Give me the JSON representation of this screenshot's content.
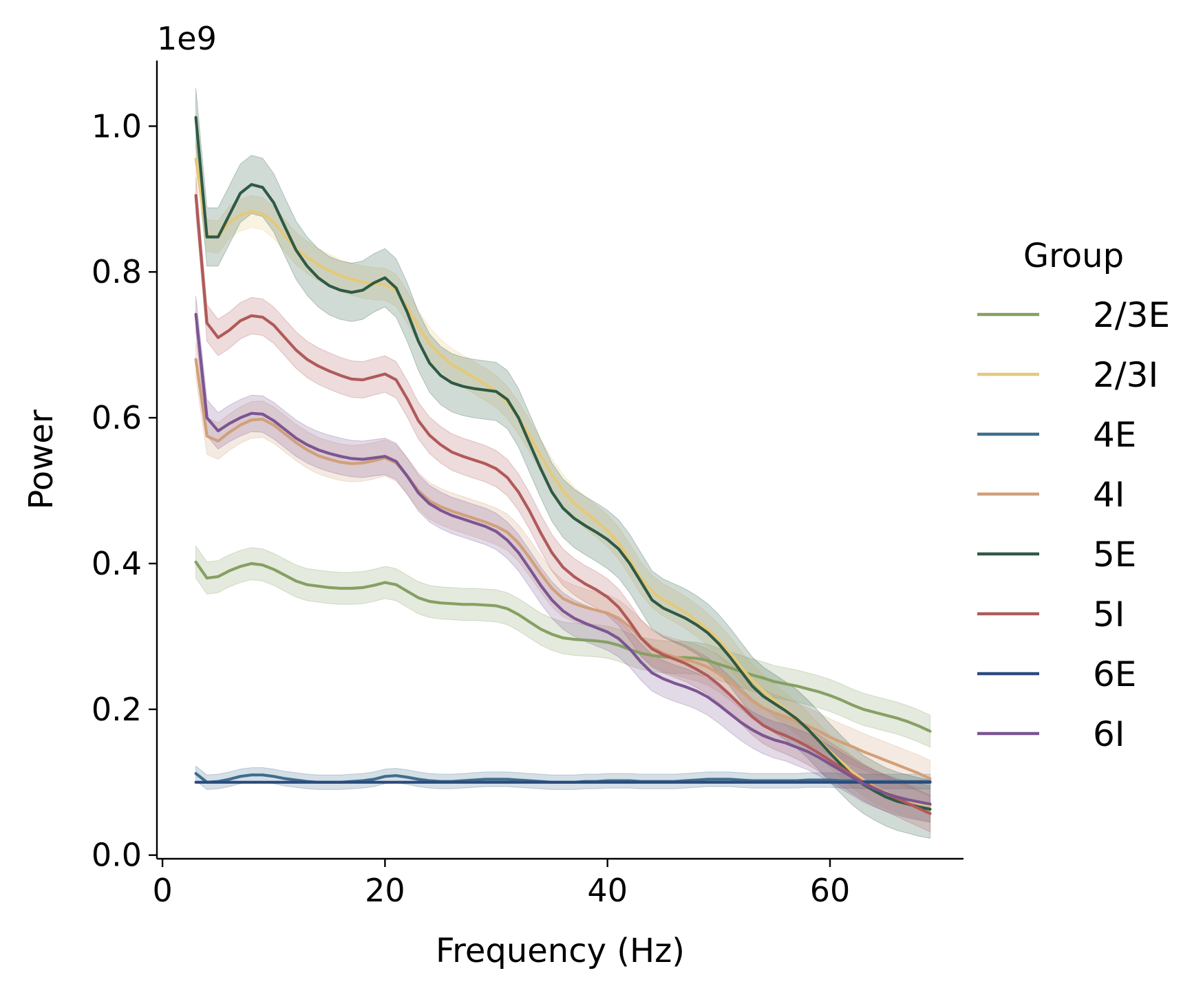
{
  "chart_data": {
    "type": "line",
    "xlabel": "Frequency (Hz)",
    "ylabel": "Power",
    "y_offset_label": "1e9",
    "xlim": [
      -0.5,
      72
    ],
    "ylim": [
      -0.005,
      1.09
    ],
    "xticks": [
      0,
      20,
      40,
      60
    ],
    "xtick_labels": [
      "0",
      "20",
      "40",
      "60"
    ],
    "yticks": [
      0.0,
      0.2,
      0.4,
      0.6,
      0.8,
      1.0
    ],
    "ytick_labels": [
      "0.0",
      "0.2",
      "0.4",
      "0.6",
      "0.8",
      "1.0"
    ],
    "grid": false,
    "legend": {
      "title": "Group",
      "placement": "right-outside"
    },
    "x": [
      3,
      4,
      5,
      6,
      7,
      8,
      9,
      10,
      11,
      12,
      13,
      14,
      15,
      16,
      17,
      18,
      19,
      20,
      21,
      22,
      23,
      24,
      25,
      26,
      27,
      28,
      29,
      30,
      31,
      32,
      33,
      34,
      35,
      36,
      37,
      38,
      39,
      40,
      41,
      42,
      43,
      44,
      45,
      46,
      47,
      48,
      49,
      50,
      51,
      52,
      53,
      54,
      55,
      56,
      57,
      58,
      59,
      60,
      61,
      62,
      63,
      64,
      65,
      66,
      67,
      68,
      69
    ],
    "series": [
      {
        "name": "2/3E",
        "color": "#86a063",
        "band": 0.022,
        "values": [
          0.402,
          0.38,
          0.382,
          0.39,
          0.396,
          0.4,
          0.398,
          0.392,
          0.384,
          0.376,
          0.371,
          0.369,
          0.367,
          0.366,
          0.366,
          0.367,
          0.37,
          0.374,
          0.371,
          0.362,
          0.353,
          0.348,
          0.346,
          0.345,
          0.344,
          0.344,
          0.343,
          0.342,
          0.338,
          0.33,
          0.32,
          0.31,
          0.303,
          0.298,
          0.296,
          0.295,
          0.294,
          0.292,
          0.288,
          0.282,
          0.277,
          0.274,
          0.272,
          0.271,
          0.271,
          0.27,
          0.267,
          0.262,
          0.257,
          0.252,
          0.247,
          0.243,
          0.238,
          0.235,
          0.232,
          0.228,
          0.224,
          0.219,
          0.213,
          0.206,
          0.2,
          0.196,
          0.192,
          0.188,
          0.183,
          0.177,
          0.17
        ]
      },
      {
        "name": "2/3I",
        "color": "#e5c97a",
        "band": 0.022,
        "values": [
          0.955,
          0.85,
          0.848,
          0.868,
          0.878,
          0.883,
          0.88,
          0.868,
          0.85,
          0.832,
          0.82,
          0.81,
          0.802,
          0.795,
          0.79,
          0.786,
          0.784,
          0.783,
          0.775,
          0.752,
          0.725,
          0.702,
          0.686,
          0.673,
          0.664,
          0.655,
          0.646,
          0.636,
          0.621,
          0.6,
          0.575,
          0.548,
          0.522,
          0.5,
          0.483,
          0.47,
          0.458,
          0.445,
          0.428,
          0.405,
          0.38,
          0.362,
          0.35,
          0.342,
          0.333,
          0.322,
          0.31,
          0.295,
          0.278,
          0.258,
          0.24,
          0.225,
          0.212,
          0.2,
          0.188,
          0.174,
          0.158,
          0.142,
          0.128,
          0.114,
          0.103,
          0.093,
          0.086,
          0.08,
          0.075,
          0.071,
          0.068
        ]
      },
      {
        "name": "4E",
        "color": "#3f6e8d",
        "band": 0.01,
        "values": [
          0.112,
          0.1,
          0.101,
          0.104,
          0.108,
          0.11,
          0.11,
          0.108,
          0.105,
          0.103,
          0.101,
          0.1,
          0.1,
          0.1,
          0.101,
          0.102,
          0.104,
          0.108,
          0.109,
          0.107,
          0.104,
          0.102,
          0.101,
          0.101,
          0.102,
          0.103,
          0.104,
          0.104,
          0.104,
          0.103,
          0.102,
          0.101,
          0.1,
          0.1,
          0.1,
          0.101,
          0.101,
          0.102,
          0.102,
          0.102,
          0.101,
          0.101,
          0.101,
          0.101,
          0.102,
          0.103,
          0.104,
          0.104,
          0.104,
          0.103,
          0.102,
          0.102,
          0.102,
          0.102,
          0.102,
          0.103,
          0.103,
          0.103,
          0.102,
          0.102,
          0.101,
          0.101,
          0.101,
          0.101,
          0.101,
          0.101,
          0.101
        ]
      },
      {
        "name": "4I",
        "color": "#d1a07a",
        "band": 0.025,
        "values": [
          0.68,
          0.575,
          0.568,
          0.58,
          0.59,
          0.597,
          0.598,
          0.59,
          0.578,
          0.566,
          0.556,
          0.548,
          0.543,
          0.539,
          0.537,
          0.538,
          0.541,
          0.545,
          0.538,
          0.52,
          0.5,
          0.486,
          0.478,
          0.472,
          0.467,
          0.462,
          0.457,
          0.451,
          0.443,
          0.428,
          0.408,
          0.386,
          0.366,
          0.352,
          0.345,
          0.34,
          0.336,
          0.332,
          0.325,
          0.313,
          0.298,
          0.285,
          0.277,
          0.272,
          0.268,
          0.264,
          0.258,
          0.249,
          0.238,
          0.225,
          0.212,
          0.202,
          0.195,
          0.19,
          0.184,
          0.177,
          0.17,
          0.162,
          0.155,
          0.149,
          0.142,
          0.136,
          0.13,
          0.124,
          0.118,
          0.112,
          0.105
        ]
      },
      {
        "name": "5E",
        "color": "#2f5a44",
        "band": 0.04,
        "values": [
          1.012,
          0.848,
          0.848,
          0.878,
          0.908,
          0.92,
          0.916,
          0.895,
          0.862,
          0.83,
          0.808,
          0.792,
          0.781,
          0.775,
          0.772,
          0.775,
          0.785,
          0.792,
          0.778,
          0.745,
          0.705,
          0.675,
          0.658,
          0.648,
          0.643,
          0.64,
          0.638,
          0.636,
          0.625,
          0.6,
          0.565,
          0.53,
          0.498,
          0.476,
          0.462,
          0.452,
          0.443,
          0.433,
          0.42,
          0.4,
          0.375,
          0.35,
          0.339,
          0.332,
          0.325,
          0.316,
          0.305,
          0.29,
          0.272,
          0.252,
          0.232,
          0.218,
          0.208,
          0.198,
          0.187,
          0.173,
          0.157,
          0.14,
          0.124,
          0.109,
          0.097,
          0.088,
          0.08,
          0.074,
          0.07,
          0.066,
          0.063
        ]
      },
      {
        "name": "5I",
        "color": "#b05a5a",
        "band": 0.025,
        "values": [
          0.905,
          0.73,
          0.71,
          0.72,
          0.733,
          0.74,
          0.738,
          0.727,
          0.71,
          0.693,
          0.68,
          0.671,
          0.664,
          0.658,
          0.653,
          0.652,
          0.656,
          0.66,
          0.652,
          0.626,
          0.596,
          0.576,
          0.563,
          0.553,
          0.547,
          0.542,
          0.537,
          0.53,
          0.518,
          0.498,
          0.472,
          0.442,
          0.415,
          0.395,
          0.382,
          0.372,
          0.364,
          0.354,
          0.34,
          0.32,
          0.298,
          0.283,
          0.275,
          0.269,
          0.263,
          0.255,
          0.246,
          0.234,
          0.22,
          0.205,
          0.19,
          0.178,
          0.17,
          0.164,
          0.157,
          0.149,
          0.14,
          0.13,
          0.12,
          0.11,
          0.1,
          0.092,
          0.085,
          0.078,
          0.071,
          0.064,
          0.057
        ]
      },
      {
        "name": "6E",
        "color": "#2c4a7e",
        "band": 0.0,
        "values": [
          0.1,
          0.1,
          0.1,
          0.1,
          0.1,
          0.1,
          0.1,
          0.1,
          0.1,
          0.1,
          0.1,
          0.1,
          0.1,
          0.1,
          0.1,
          0.1,
          0.1,
          0.1,
          0.1,
          0.1,
          0.1,
          0.1,
          0.1,
          0.1,
          0.1,
          0.1,
          0.1,
          0.1,
          0.1,
          0.1,
          0.1,
          0.1,
          0.1,
          0.1,
          0.1,
          0.1,
          0.1,
          0.1,
          0.1,
          0.1,
          0.1,
          0.1,
          0.1,
          0.1,
          0.1,
          0.1,
          0.1,
          0.1,
          0.1,
          0.1,
          0.1,
          0.1,
          0.1,
          0.1,
          0.1,
          0.1,
          0.1,
          0.1,
          0.1,
          0.1,
          0.1,
          0.1,
          0.1,
          0.1,
          0.1,
          0.1,
          0.1
        ]
      },
      {
        "name": "6I",
        "color": "#7c5592",
        "band": 0.025,
        "values": [
          0.742,
          0.6,
          0.582,
          0.592,
          0.6,
          0.606,
          0.605,
          0.596,
          0.584,
          0.572,
          0.563,
          0.556,
          0.551,
          0.547,
          0.544,
          0.543,
          0.545,
          0.547,
          0.54,
          0.52,
          0.497,
          0.482,
          0.473,
          0.466,
          0.461,
          0.456,
          0.451,
          0.444,
          0.432,
          0.415,
          0.393,
          0.37,
          0.35,
          0.335,
          0.325,
          0.318,
          0.312,
          0.306,
          0.297,
          0.283,
          0.265,
          0.25,
          0.242,
          0.236,
          0.231,
          0.225,
          0.217,
          0.206,
          0.194,
          0.182,
          0.172,
          0.164,
          0.158,
          0.154,
          0.148,
          0.142,
          0.134,
          0.125,
          0.116,
          0.107,
          0.098,
          0.091,
          0.085,
          0.08,
          0.076,
          0.073,
          0.07
        ]
      }
    ]
  }
}
